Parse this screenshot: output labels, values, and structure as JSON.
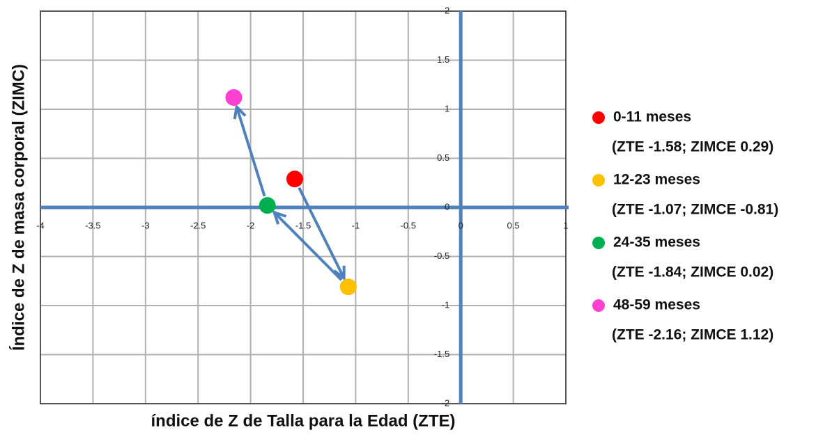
{
  "chart_data": {
    "type": "scatter",
    "xlabel": "índice de Z de Talla para la Edad (ZTE)",
    "ylabel": "Índice de Z de masa corporal (ZIMC)",
    "xlim": [
      -4,
      1
    ],
    "xticks": [
      -4,
      -3.5,
      -3,
      -2.5,
      -2,
      -1.5,
      -1,
      -0.5,
      0,
      0.5,
      1
    ],
    "ylim": [
      -2,
      2
    ],
    "yticks": [
      -2,
      -1.5,
      -1,
      -0.5,
      0,
      0.5,
      1,
      1.5,
      2
    ],
    "grid": true,
    "series": [
      {
        "name": "0-11 meses",
        "color": "#ff0000",
        "x": [
          -1.58
        ],
        "values": [
          0.29
        ],
        "note": "(ZTE -1.58; ZIMCE 0.29)"
      },
      {
        "name": "12-23 meses",
        "color": "#ffc000",
        "x": [
          -1.07
        ],
        "values": [
          -0.81
        ],
        "note": "(ZTE -1.07; ZIMCE -0.81)"
      },
      {
        "name": "24-35 meses",
        "color": "#00b050",
        "x": [
          -1.84
        ],
        "values": [
          0.02
        ],
        "note": "(ZTE -1.84; ZIMCE 0.02)"
      },
      {
        "name": "48-59 meses",
        "color": "#ff40d0",
        "x": [
          -2.16
        ],
        "values": [
          1.12
        ],
        "note": "(ZTE -2.16; ZIMCE 1.12)"
      }
    ]
  }
}
